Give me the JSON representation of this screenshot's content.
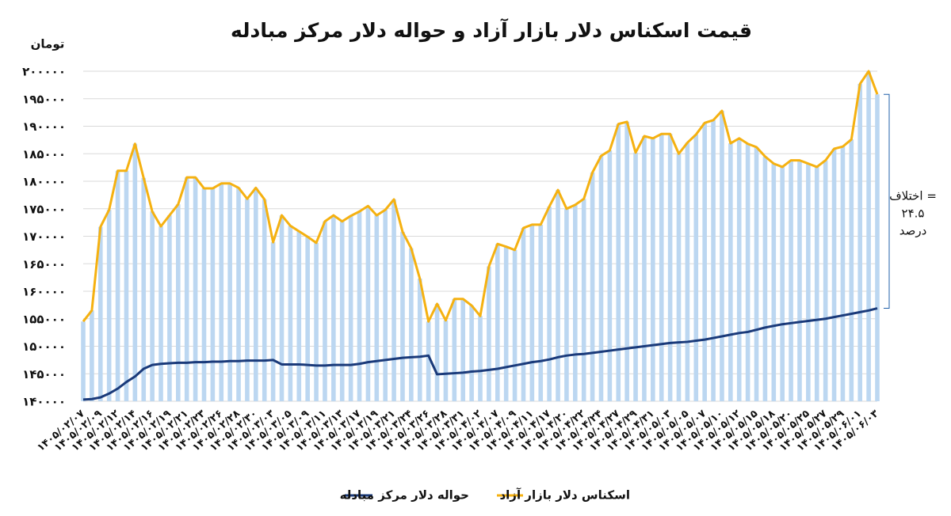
{
  "chart_data": {
    "type": "bar-line",
    "title": "قیمت اسکناس دلار بازار آزاد و حواله دلار مرکز مبادله",
    "y_label": "تومان",
    "annotation": [
      "اختلاف =",
      "۲۴.۵",
      "درصد"
    ],
    "categories": [
      "۱۴۰۵/۰۲/۰۷",
      null,
      "۱۴۰۵/۰۲/۰۹",
      null,
      "۱۴۰۵/۰۲/۱۲",
      null,
      "۱۴۰۵/۰۲/۱۴",
      null,
      "۱۴۰۵/۰۲/۱۶",
      null,
      "۱۴۰۵/۰۲/۱۹",
      null,
      "۱۴۰۵/۰۲/۲۱",
      null,
      "۱۴۰۵/۰۲/۲۳",
      null,
      "۱۴۰۵/۰۲/۲۶",
      null,
      "۱۴۰۵/۰۲/۲۸",
      null,
      "۱۴۰۵/۰۲/۳۰",
      null,
      "۱۴۰۵/۰۳/۰۳",
      null,
      "۱۴۰۵/۰۳/۰۵",
      null,
      "۱۴۰۵/۰۳/۰۹",
      null,
      "۱۴۰۵/۰۳/۱۱",
      null,
      "۱۴۰۵/۰۳/۱۳",
      null,
      "۱۴۰۵/۰۳/۱۷",
      null,
      "۱۴۰۵/۰۳/۱۹",
      null,
      "۱۴۰۵/۰۳/۲۱",
      null,
      "۱۴۰۵/۰۳/۲۴",
      null,
      "۱۴۰۵/۰۳/۲۶",
      null,
      "۱۴۰۵/۰۳/۲۸",
      null,
      "۱۴۰۵/۰۳/۳۱",
      null,
      "۱۴۰۵/۰۴/۰۲",
      null,
      "۱۴۰۵/۰۴/۰۷",
      null,
      "۱۴۰۵/۰۴/۰۹",
      null,
      "۱۴۰۵/۰۴/۱۱",
      null,
      "۱۴۰۵/۰۴/۱۷",
      null,
      "۱۴۰۵/۰۴/۲۰",
      null,
      "۱۴۰۵/۰۴/۲۲",
      null,
      "۱۴۰۵/۰۴/۲۴",
      null,
      "۱۴۰۵/۰۴/۲۷",
      null,
      "۱۴۰۵/۰۴/۲۹",
      null,
      "۱۴۰۵/۰۴/۳۱",
      null,
      "۱۴۰۵/۰۵/۰۳",
      null,
      "۱۴۰۵/۰۵/۰۵",
      null,
      "۱۴۰۵/۰۵/۰۷",
      null,
      "۱۴۰۵/۰۵/۱۰",
      null,
      "۱۴۰۵/۰۵/۱۲",
      null,
      "۱۴۰۵/۰۵/۱۵",
      null,
      "۱۴۰۵/۰۵/۱۸",
      null,
      "۱۴۰۵/۰۵/۲۰",
      null,
      "۱۴۰۵/۰۵/۲۵",
      null,
      "۱۴۰۵/۰۵/۲۷",
      null,
      "۱۴۰۵/۰۵/۲۹",
      null,
      "۱۴۰۵/۰۶/۰۱",
      null,
      "۱۴۰۵/۰۶/۰۳"
    ],
    "series": [
      {
        "name": "اسکناس دلار بازار آزاد",
        "color": "#f5b111",
        "bar_color": "#bcd7f1",
        "values": [
          154500,
          156500,
          171700,
          174800,
          181900,
          181900,
          186800,
          180600,
          174500,
          171800,
          173800,
          175800,
          180700,
          180700,
          178700,
          178700,
          179600,
          179600,
          178800,
          176800,
          178800,
          176700,
          168900,
          173800,
          171900,
          170900,
          169900,
          168800,
          172700,
          173800,
          172700,
          173700,
          174500,
          175500,
          173800,
          174800,
          176700,
          170800,
          167800,
          162300,
          154500,
          157700,
          154700,
          158600,
          158600,
          157400,
          155500,
          164500,
          168600,
          168100,
          167500,
          171500,
          172100,
          172100,
          175400,
          178400,
          175000,
          175700,
          176800,
          181600,
          184600,
          185600,
          190400,
          190800,
          185200,
          188200,
          187800,
          188600,
          188600,
          185000,
          187000,
          188500,
          190600,
          191100,
          192800,
          186900,
          187800,
          186800,
          186200,
          184500,
          183200,
          182600,
          183800,
          183800,
          183200,
          182600,
          183800,
          185900,
          186300,
          187600,
          197700,
          200000,
          195800
        ]
      },
      {
        "name": "حواله دلار مرکز مبادله",
        "color": "#1a3a7a",
        "values": [
          140300,
          140400,
          140700,
          141400,
          142300,
          143500,
          144500,
          145900,
          146600,
          146800,
          146900,
          147000,
          147000,
          147100,
          147100,
          147200,
          147200,
          147300,
          147300,
          147400,
          147400,
          147400,
          147500,
          146700,
          146700,
          146700,
          146600,
          146500,
          146500,
          146600,
          146600,
          146600,
          146800,
          147100,
          147300,
          147500,
          147700,
          147900,
          148000,
          148100,
          148300,
          144900,
          145000,
          145100,
          145200,
          145400,
          145500,
          145700,
          145900,
          146200,
          146500,
          146800,
          147100,
          147300,
          147600,
          148000,
          148300,
          148500,
          148600,
          148800,
          149000,
          149200,
          149400,
          149600,
          149800,
          150000,
          150200,
          150400,
          150600,
          150700,
          150800,
          151000,
          151200,
          151500,
          151800,
          152100,
          152400,
          152600,
          153000,
          153400,
          153700,
          154000,
          154200,
          154400,
          154600,
          154800,
          155000,
          155300,
          155600,
          155900,
          156200,
          156500,
          156900
        ]
      }
    ],
    "ylim": [
      140000,
      200000
    ],
    "yticks": [
      {
        "value": 140000,
        "label": "۱۴۰۰۰۰"
      },
      {
        "value": 145000,
        "label": "۱۴۵۰۰۰"
      },
      {
        "value": 150000,
        "label": "۱۵۰۰۰۰"
      },
      {
        "value": 155000,
        "label": "۱۵۵۰۰۰"
      },
      {
        "value": 160000,
        "label": "۱۶۰۰۰۰"
      },
      {
        "value": 165000,
        "label": "۱۶۵۰۰۰"
      },
      {
        "value": 170000,
        "label": "۱۷۰۰۰۰"
      },
      {
        "value": 175000,
        "label": "۱۷۵۰۰۰"
      },
      {
        "value": 180000,
        "label": "۱۸۰۰۰۰"
      },
      {
        "value": 185000,
        "label": "۱۸۵۰۰۰"
      },
      {
        "value": 190000,
        "label": "۱۹۰۰۰۰"
      },
      {
        "value": 195000,
        "label": "۱۹۵۰۰۰"
      },
      {
        "value": 200000,
        "label": "۲۰۰۰۰۰"
      }
    ],
    "grid": true,
    "legend": "bottom"
  }
}
